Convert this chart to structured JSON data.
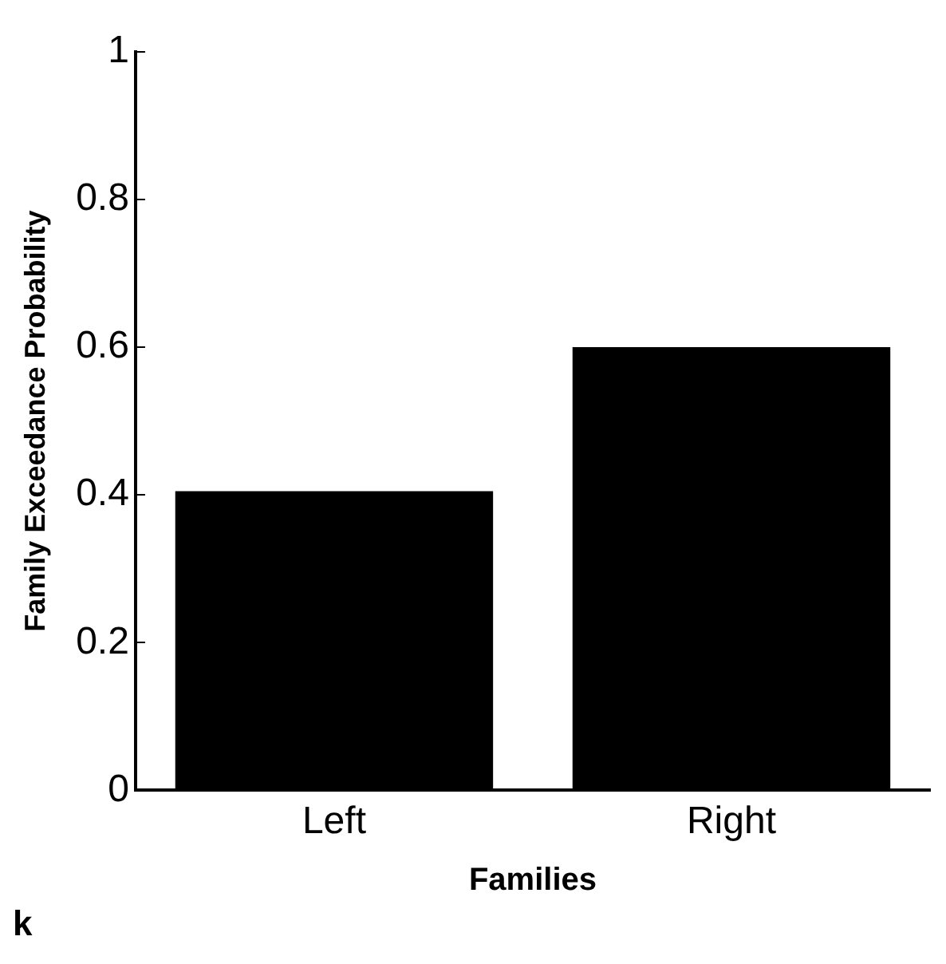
{
  "chart_data": {
    "type": "bar",
    "xlabel": "Families",
    "ylabel": "Family Exceedance Probability",
    "categories": [
      "Left",
      "Right"
    ],
    "values": [
      0.405,
      0.6
    ],
    "color": "#000000",
    "ylim": [
      0,
      1
    ],
    "yticks": [
      0,
      0.2,
      0.4,
      0.6,
      0.8,
      1
    ],
    "grid": false,
    "legend": false,
    "annotations": [
      "k"
    ]
  }
}
